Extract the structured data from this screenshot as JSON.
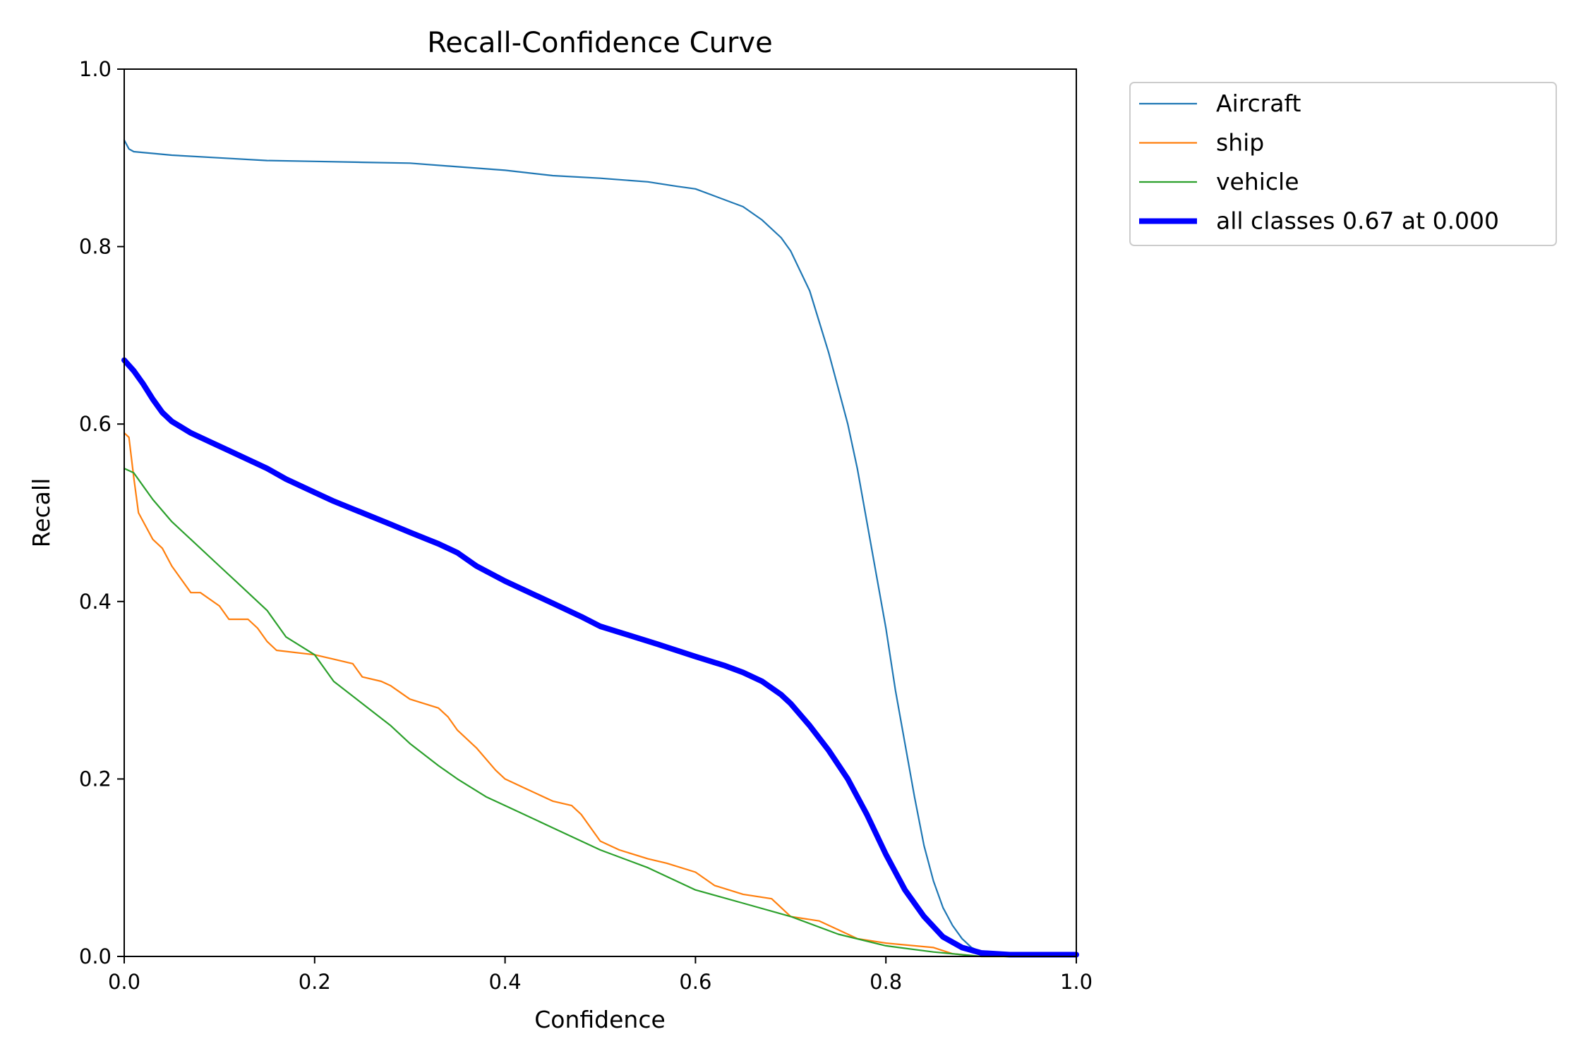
{
  "chart_data": {
    "type": "line",
    "title": "Recall-Confidence Curve",
    "xlabel": "Confidence",
    "ylabel": "Recall",
    "xlim": [
      0,
      1
    ],
    "ylim": [
      0,
      1
    ],
    "xticks": [
      "0.0",
      "0.2",
      "0.4",
      "0.6",
      "0.8",
      "1.0"
    ],
    "yticks": [
      "0.0",
      "0.2",
      "0.4",
      "0.6",
      "0.8",
      "1.0"
    ],
    "grid": false,
    "legend": "outside-top-right",
    "series": [
      {
        "name": "Aircraft",
        "color": "#1f77b4",
        "width": "thin",
        "points": [
          [
            0.0,
            0.92
          ],
          [
            0.005,
            0.91
          ],
          [
            0.01,
            0.907
          ],
          [
            0.03,
            0.905
          ],
          [
            0.05,
            0.903
          ],
          [
            0.1,
            0.9
          ],
          [
            0.15,
            0.897
          ],
          [
            0.2,
            0.896
          ],
          [
            0.25,
            0.895
          ],
          [
            0.3,
            0.894
          ],
          [
            0.35,
            0.89
          ],
          [
            0.4,
            0.886
          ],
          [
            0.45,
            0.88
          ],
          [
            0.5,
            0.877
          ],
          [
            0.55,
            0.873
          ],
          [
            0.58,
            0.868
          ],
          [
            0.6,
            0.865
          ],
          [
            0.62,
            0.857
          ],
          [
            0.65,
            0.845
          ],
          [
            0.67,
            0.83
          ],
          [
            0.69,
            0.81
          ],
          [
            0.7,
            0.795
          ],
          [
            0.72,
            0.75
          ],
          [
            0.73,
            0.715
          ],
          [
            0.74,
            0.68
          ],
          [
            0.75,
            0.64
          ],
          [
            0.76,
            0.6
          ],
          [
            0.77,
            0.55
          ],
          [
            0.78,
            0.49
          ],
          [
            0.79,
            0.43
          ],
          [
            0.8,
            0.37
          ],
          [
            0.81,
            0.3
          ],
          [
            0.82,
            0.24
          ],
          [
            0.83,
            0.18
          ],
          [
            0.84,
            0.125
          ],
          [
            0.85,
            0.085
          ],
          [
            0.86,
            0.055
          ],
          [
            0.87,
            0.035
          ],
          [
            0.88,
            0.02
          ],
          [
            0.89,
            0.01
          ],
          [
            0.9,
            0.005
          ],
          [
            0.92,
            0.002
          ],
          [
            1.0,
            0.002
          ]
        ]
      },
      {
        "name": "ship",
        "color": "#ff7f0e",
        "width": "thin",
        "points": [
          [
            0.0,
            0.59
          ],
          [
            0.005,
            0.585
          ],
          [
            0.01,
            0.54
          ],
          [
            0.015,
            0.5
          ],
          [
            0.02,
            0.49
          ],
          [
            0.03,
            0.47
          ],
          [
            0.04,
            0.46
          ],
          [
            0.045,
            0.45
          ],
          [
            0.05,
            0.44
          ],
          [
            0.06,
            0.425
          ],
          [
            0.07,
            0.41
          ],
          [
            0.08,
            0.41
          ],
          [
            0.1,
            0.395
          ],
          [
            0.11,
            0.38
          ],
          [
            0.13,
            0.38
          ],
          [
            0.14,
            0.37
          ],
          [
            0.15,
            0.355
          ],
          [
            0.16,
            0.345
          ],
          [
            0.2,
            0.34
          ],
          [
            0.22,
            0.335
          ],
          [
            0.24,
            0.33
          ],
          [
            0.25,
            0.315
          ],
          [
            0.27,
            0.31
          ],
          [
            0.28,
            0.305
          ],
          [
            0.3,
            0.29
          ],
          [
            0.33,
            0.28
          ],
          [
            0.34,
            0.27
          ],
          [
            0.35,
            0.255
          ],
          [
            0.37,
            0.235
          ],
          [
            0.39,
            0.21
          ],
          [
            0.4,
            0.2
          ],
          [
            0.42,
            0.19
          ],
          [
            0.45,
            0.175
          ],
          [
            0.47,
            0.17
          ],
          [
            0.48,
            0.16
          ],
          [
            0.49,
            0.145
          ],
          [
            0.5,
            0.13
          ],
          [
            0.52,
            0.12
          ],
          [
            0.55,
            0.11
          ],
          [
            0.57,
            0.105
          ],
          [
            0.6,
            0.095
          ],
          [
            0.62,
            0.08
          ],
          [
            0.65,
            0.07
          ],
          [
            0.68,
            0.065
          ],
          [
            0.7,
            0.045
          ],
          [
            0.73,
            0.04
          ],
          [
            0.75,
            0.03
          ],
          [
            0.77,
            0.02
          ],
          [
            0.8,
            0.015
          ],
          [
            0.85,
            0.01
          ],
          [
            0.87,
            0.003
          ],
          [
            0.9,
            0.0
          ],
          [
            1.0,
            0.0
          ]
        ]
      },
      {
        "name": "vehicle",
        "color": "#2ca02c",
        "width": "thin",
        "points": [
          [
            0.0,
            0.55
          ],
          [
            0.01,
            0.545
          ],
          [
            0.02,
            0.53
          ],
          [
            0.03,
            0.515
          ],
          [
            0.05,
            0.49
          ],
          [
            0.07,
            0.47
          ],
          [
            0.1,
            0.44
          ],
          [
            0.12,
            0.42
          ],
          [
            0.15,
            0.39
          ],
          [
            0.17,
            0.36
          ],
          [
            0.2,
            0.34
          ],
          [
            0.22,
            0.31
          ],
          [
            0.25,
            0.285
          ],
          [
            0.28,
            0.26
          ],
          [
            0.3,
            0.24
          ],
          [
            0.33,
            0.215
          ],
          [
            0.35,
            0.2
          ],
          [
            0.38,
            0.18
          ],
          [
            0.4,
            0.17
          ],
          [
            0.45,
            0.145
          ],
          [
            0.5,
            0.12
          ],
          [
            0.55,
            0.1
          ],
          [
            0.6,
            0.075
          ],
          [
            0.65,
            0.06
          ],
          [
            0.7,
            0.045
          ],
          [
            0.75,
            0.025
          ],
          [
            0.8,
            0.012
          ],
          [
            0.85,
            0.005
          ],
          [
            0.88,
            0.002
          ],
          [
            0.9,
            0.0
          ],
          [
            1.0,
            0.0
          ]
        ]
      },
      {
        "name": "all classes 0.67 at 0.000",
        "color": "#0000ff",
        "width": "thick",
        "points": [
          [
            0.0,
            0.672
          ],
          [
            0.01,
            0.66
          ],
          [
            0.02,
            0.645
          ],
          [
            0.03,
            0.628
          ],
          [
            0.04,
            0.613
          ],
          [
            0.05,
            0.603
          ],
          [
            0.07,
            0.59
          ],
          [
            0.09,
            0.58
          ],
          [
            0.11,
            0.57
          ],
          [
            0.13,
            0.56
          ],
          [
            0.15,
            0.55
          ],
          [
            0.17,
            0.538
          ],
          [
            0.2,
            0.523
          ],
          [
            0.22,
            0.513
          ],
          [
            0.25,
            0.5
          ],
          [
            0.28,
            0.487
          ],
          [
            0.3,
            0.478
          ],
          [
            0.33,
            0.465
          ],
          [
            0.35,
            0.455
          ],
          [
            0.37,
            0.44
          ],
          [
            0.4,
            0.423
          ],
          [
            0.43,
            0.408
          ],
          [
            0.45,
            0.398
          ],
          [
            0.48,
            0.383
          ],
          [
            0.5,
            0.372
          ],
          [
            0.53,
            0.362
          ],
          [
            0.56,
            0.352
          ],
          [
            0.6,
            0.338
          ],
          [
            0.63,
            0.328
          ],
          [
            0.65,
            0.32
          ],
          [
            0.67,
            0.31
          ],
          [
            0.69,
            0.295
          ],
          [
            0.7,
            0.285
          ],
          [
            0.72,
            0.26
          ],
          [
            0.74,
            0.232
          ],
          [
            0.76,
            0.2
          ],
          [
            0.78,
            0.16
          ],
          [
            0.8,
            0.115
          ],
          [
            0.82,
            0.075
          ],
          [
            0.84,
            0.045
          ],
          [
            0.86,
            0.022
          ],
          [
            0.88,
            0.01
          ],
          [
            0.9,
            0.004
          ],
          [
            0.93,
            0.002
          ],
          [
            1.0,
            0.002
          ]
        ]
      }
    ]
  }
}
